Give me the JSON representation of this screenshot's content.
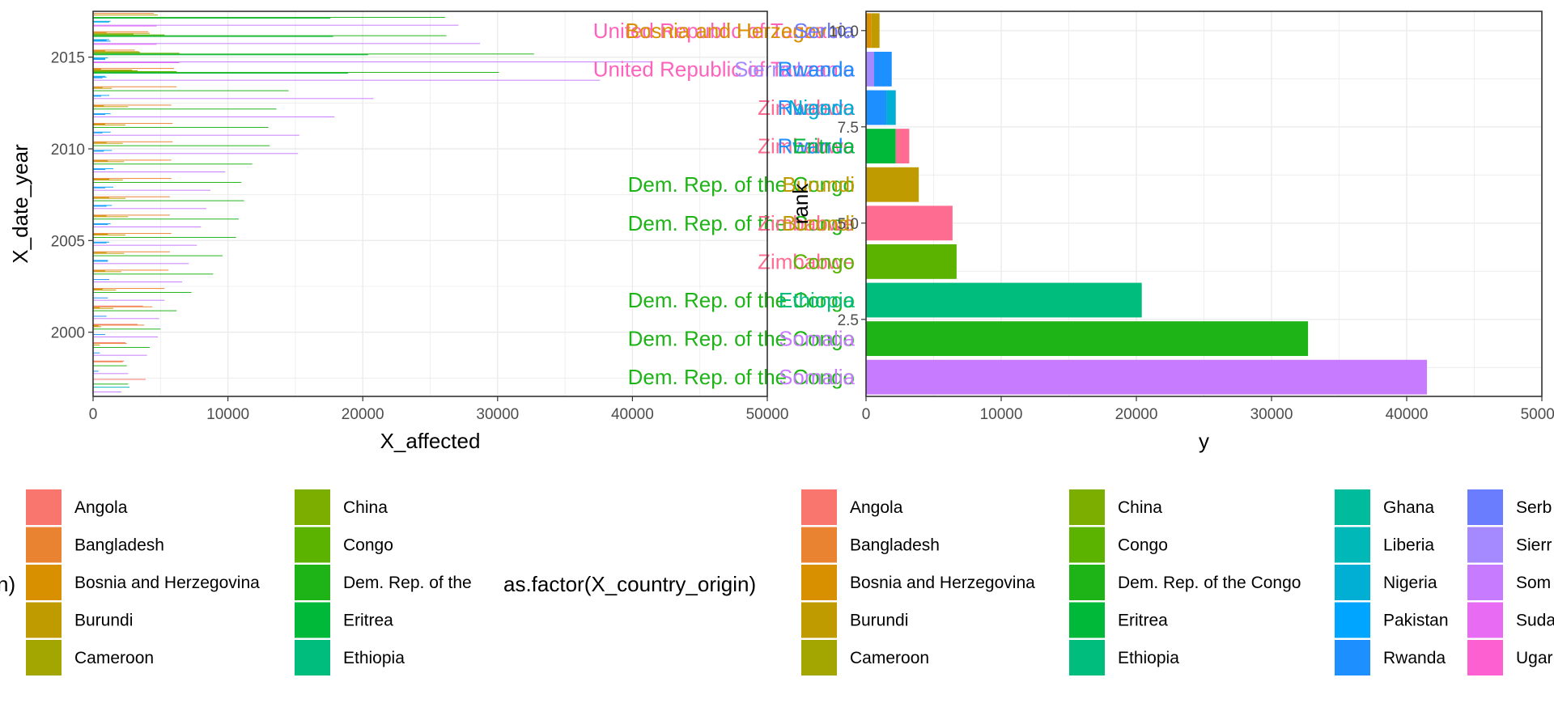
{
  "chart_data": [
    {
      "type": "bar",
      "orientation": "horizontal",
      "xlabel": "X_affected",
      "ylabel": "X_date_year",
      "xlim": [
        0,
        50000
      ],
      "ylim": [
        1996.5,
        2017.5
      ],
      "x_ticks": [
        "0",
        "10000",
        "20000",
        "30000",
        "40000",
        "50000"
      ],
      "y_ticks": [
        "2000",
        "2005",
        "2010",
        "2015"
      ],
      "grid": true,
      "years": [
        1997,
        1998,
        1999,
        2000,
        2001,
        2002,
        2003,
        2004,
        2005,
        2006,
        2007,
        2008,
        2009,
        2010,
        2011,
        2012,
        2013,
        2014,
        2015,
        2016,
        2017
      ],
      "series": [
        {
          "country": "Angola",
          "values": [
            3900,
            2300,
            2400,
            3300,
            3700,
            0,
            0,
            0,
            0,
            0,
            0,
            0,
            0,
            0,
            0,
            0,
            0,
            0,
            0,
            0,
            0
          ]
        },
        {
          "country": "Bangladesh",
          "values": [
            0,
            2200,
            2500,
            3800,
            4400,
            5300,
            5600,
            5700,
            5800,
            5700,
            5700,
            5800,
            5800,
            5900,
            5900,
            5800,
            6200,
            6000,
            3100,
            4100,
            4500
          ]
        },
        {
          "country": "Bosnia and Herzegovina",
          "values": [
            0,
            0,
            0,
            400,
            500,
            700,
            900,
            1000,
            1100,
            1000,
            1200,
            1200,
            1100,
            1000,
            900,
            800,
            700,
            600,
            900,
            1000,
            0
          ]
        },
        {
          "country": "Burundi",
          "values": [
            0,
            0,
            500,
            600,
            1500,
            1700,
            2100,
            2300,
            2400,
            2600,
            2400,
            2200,
            2300,
            2200,
            2400,
            2600,
            1400,
            2900,
            3400,
            4200,
            4800
          ]
        },
        {
          "country": "China",
          "values": [
            0,
            0,
            0,
            0,
            0,
            0,
            0,
            0,
            0,
            0,
            0,
            0,
            0,
            0,
            0,
            0,
            0,
            3300,
            3500,
            3000,
            0
          ]
        },
        {
          "country": "Congo",
          "values": [
            0,
            0,
            0,
            0,
            0,
            0,
            0,
            0,
            0,
            0,
            0,
            0,
            0,
            0,
            0,
            0,
            0,
            6200,
            6400,
            5300,
            0
          ]
        },
        {
          "country": "Dem. Rep. of the Congo",
          "values": [
            2600,
            2500,
            4200,
            5000,
            6200,
            7300,
            8900,
            9600,
            10600,
            10800,
            11200,
            11000,
            11800,
            13100,
            13000,
            13600,
            14500,
            30100,
            32700,
            26200,
            26100
          ]
        },
        {
          "country": "Eritrea",
          "values": [
            0,
            0,
            0,
            0,
            0,
            0,
            0,
            0,
            0,
            0,
            0,
            0,
            0,
            0,
            0,
            0,
            0,
            18900,
            20400,
            17800,
            17600
          ]
        },
        {
          "country": "Ethiopia",
          "values": [
            0,
            0,
            0,
            0,
            0,
            0,
            0,
            0,
            0,
            0,
            0,
            0,
            0,
            0,
            0,
            0,
            0,
            0,
            0,
            0,
            0
          ]
        },
        {
          "country": "Ghana",
          "values": [
            0,
            0,
            0,
            0,
            0,
            0,
            0,
            0,
            0,
            0,
            0,
            0,
            0,
            0,
            0,
            0,
            0,
            0,
            0,
            0,
            0
          ]
        },
        {
          "country": "Liberia",
          "values": [
            2700,
            0,
            0,
            0,
            0,
            0,
            0,
            0,
            0,
            0,
            0,
            0,
            0,
            0,
            0,
            0,
            0,
            0,
            0,
            0,
            0
          ]
        },
        {
          "country": "Nigeria",
          "values": [
            0,
            0,
            0,
            0,
            0,
            0,
            0,
            0,
            0,
            0,
            0,
            0,
            0,
            0,
            0,
            0,
            0,
            900,
            1100,
            1200,
            1300
          ]
        },
        {
          "country": "Pakistan",
          "values": [
            0,
            0,
            0,
            0,
            0,
            0,
            0,
            1100,
            1200,
            1300,
            1400,
            1500,
            1500,
            1400,
            1300,
            1300,
            1200,
            1000,
            900,
            1000,
            1200
          ]
        },
        {
          "country": "Rwanda",
          "values": [
            0,
            400,
            500,
            900,
            1000,
            1100,
            1200,
            1100,
            1000,
            1100,
            1000,
            900,
            900,
            800,
            700,
            900,
            600,
            700,
            900,
            1300,
            0
          ]
        },
        {
          "country": "Serbia",
          "values": [
            0,
            0,
            0,
            0,
            0,
            0,
            0,
            0,
            0,
            0,
            0,
            0,
            0,
            0,
            0,
            0,
            0,
            0,
            0,
            0,
            0
          ]
        },
        {
          "country": "Sierra Leone",
          "values": [
            0,
            0,
            0,
            0,
            0,
            0,
            0,
            0,
            0,
            0,
            0,
            0,
            0,
            0,
            0,
            0,
            0,
            0,
            0,
            0,
            0
          ]
        },
        {
          "country": "Somalia",
          "values": [
            2100,
            2600,
            4000,
            4800,
            4900,
            5300,
            6600,
            7100,
            7700,
            8000,
            8400,
            8700,
            9800,
            15200,
            15300,
            17900,
            20800,
            37600,
            41500,
            28700,
            27100
          ]
        },
        {
          "country": "Sudan",
          "values": [
            0,
            0,
            0,
            0,
            0,
            0,
            0,
            0,
            0,
            0,
            0,
            0,
            0,
            0,
            0,
            0,
            0,
            0,
            6400,
            4700,
            4700
          ]
        },
        {
          "country": "Uganda",
          "values": [
            0,
            0,
            0,
            0,
            0,
            0,
            0,
            0,
            0,
            0,
            0,
            0,
            0,
            0,
            0,
            0,
            0,
            0,
            0,
            0,
            0
          ]
        },
        {
          "country": "United Republic of Tanzania",
          "values": [
            0,
            0,
            0,
            0,
            0,
            0,
            0,
            0,
            0,
            0,
            0,
            0,
            0,
            0,
            0,
            0,
            0,
            0,
            0,
            0,
            0
          ]
        },
        {
          "country": "Zimbabwe",
          "values": [
            0,
            0,
            0,
            0,
            0,
            0,
            0,
            0,
            0,
            0,
            0,
            0,
            0,
            0,
            0,
            0,
            0,
            0,
            0,
            0,
            0
          ]
        }
      ],
      "bar_labels": [
        {
          "rank": 1,
          "texts": [
            "Dem. Rep. of the Congo",
            "Somalia"
          ]
        },
        {
          "rank": 2,
          "texts": [
            "Dem. Rep. of the Congo",
            "Somalia"
          ]
        },
        {
          "rank": 3,
          "texts": [
            "Dem. Rep. of the Congo",
            "Ethiopia"
          ]
        },
        {
          "rank": 4,
          "texts": [
            "Zimbabwe",
            "Congo"
          ]
        },
        {
          "rank": 5,
          "texts": [
            "Dem. Rep. of the Congo",
            "Zimbabwe",
            "Burundi"
          ]
        },
        {
          "rank": 6,
          "texts": [
            "Dem. Rep. of the Congo",
            "Burundi"
          ]
        },
        {
          "rank": 7,
          "texts": [
            "Zimbabwe",
            "Rwanda",
            "Eritrea"
          ]
        },
        {
          "rank": 8,
          "texts": [
            "Zimbabwe",
            "Rwanda",
            "Nigeria"
          ]
        },
        {
          "rank": 9,
          "texts": [
            "United Republic of Tanzania",
            "Sierra Leone",
            "Rwanda"
          ]
        },
        {
          "rank": 10,
          "texts": [
            "United Republic of Tanzania",
            "Bosnia and Herzegovina",
            "Serbia"
          ]
        }
      ]
    },
    {
      "type": "bar",
      "orientation": "horizontal",
      "xlabel": "y",
      "ylabel": "rank",
      "xlim": [
        0,
        50000
      ],
      "ylim": [
        0.5,
        10.5
      ],
      "x_ticks": [
        "0",
        "10000",
        "20000",
        "30000",
        "40000",
        "50000"
      ],
      "y_ticks": [
        "2.5",
        "5.0",
        "7.5",
        "10.0"
      ],
      "grid": true,
      "bars": [
        {
          "rank": 1,
          "value": 41500,
          "country": "Somalia"
        },
        {
          "rank": 2,
          "value": 32700,
          "country": "Dem. Rep. of the Congo"
        },
        {
          "rank": 3,
          "value": 20400,
          "country": "Ethiopia"
        },
        {
          "rank": 4,
          "value": 6700,
          "country": "Congo"
        },
        {
          "rank": 5,
          "value": 6400,
          "country": "Zimbabwe"
        },
        {
          "rank": 6,
          "value": 3900,
          "country": "Burundi"
        },
        {
          "rank": 7,
          "value": 2200,
          "country": "Eritrea",
          "stack": [
            {
              "country": "Zimbabwe",
              "value": 1000
            }
          ]
        },
        {
          "rank": 8,
          "value": 1500,
          "country": "Rwanda",
          "stack": [
            {
              "country": "Nigeria",
              "value": 700
            }
          ]
        },
        {
          "rank": 9,
          "value": 600,
          "country": "Sierra Leone",
          "stack": [
            {
              "country": "Rwanda",
              "value": 1300
            }
          ]
        },
        {
          "rank": 10,
          "value": 400,
          "country": "Bosnia and Herzegovina",
          "stack": [
            {
              "country": "Burundi",
              "value": 600
            }
          ]
        }
      ]
    }
  ],
  "legends": [
    {
      "title": "n)",
      "columns": [
        [
          "Angola",
          "Bangladesh",
          "Bosnia and Herzegovina",
          "Burundi",
          "Cameroon"
        ],
        [
          "China",
          "Congo",
          "Dem. Rep. of the",
          "Eritrea",
          "Ethiopia"
        ]
      ]
    },
    {
      "title": "as.factor(X_country_origin)",
      "columns": [
        [
          "Angola",
          "Bangladesh",
          "Bosnia and Herzegovina",
          "Burundi",
          "Cameroon"
        ],
        [
          "China",
          "Congo",
          "Dem. Rep. of the Congo",
          "Eritrea",
          "Ethiopia"
        ],
        [
          "Ghana",
          "Liberia",
          "Nigeria",
          "Pakistan",
          "Rwanda"
        ],
        [
          "Serb",
          "Sierr",
          "Som",
          "Suda",
          "Ugar"
        ]
      ]
    }
  ],
  "palette": {
    "Angola": "#F8766D",
    "Bangladesh": "#EA8331",
    "Bosnia and Herzegovina": "#D89000",
    "Burundi": "#C09B00",
    "Cameroon": "#A3A500",
    "China": "#7CAE00",
    "Congo": "#5BB300",
    "Dem. Rep. of the Congo": "#1EB316",
    "Eritrea": "#00B938",
    "Ethiopia": "#00BD7D",
    "Ghana": "#00BC9D",
    "Liberia": "#00B8B8",
    "Nigeria": "#00AFD3",
    "Pakistan": "#00A5FF",
    "Rwanda": "#1E8FFF",
    "Serbia": "#6B7DFF",
    "Sierra Leone": "#A58AFF",
    "Somalia": "#C77CFF",
    "Sudan": "#E76BF3",
    "Uganda": "#FD61D1",
    "United Republic of Tanzania": "#FF62BC",
    "Zimbabwe": "#FF6C91",
    "Dem. Rep. of the": "#1EB316",
    "Serb": "#6B7DFF",
    "Sierr": "#A58AFF",
    "Som": "#C77CFF",
    "Suda": "#E76BF3",
    "Ugar": "#FD61D1"
  }
}
